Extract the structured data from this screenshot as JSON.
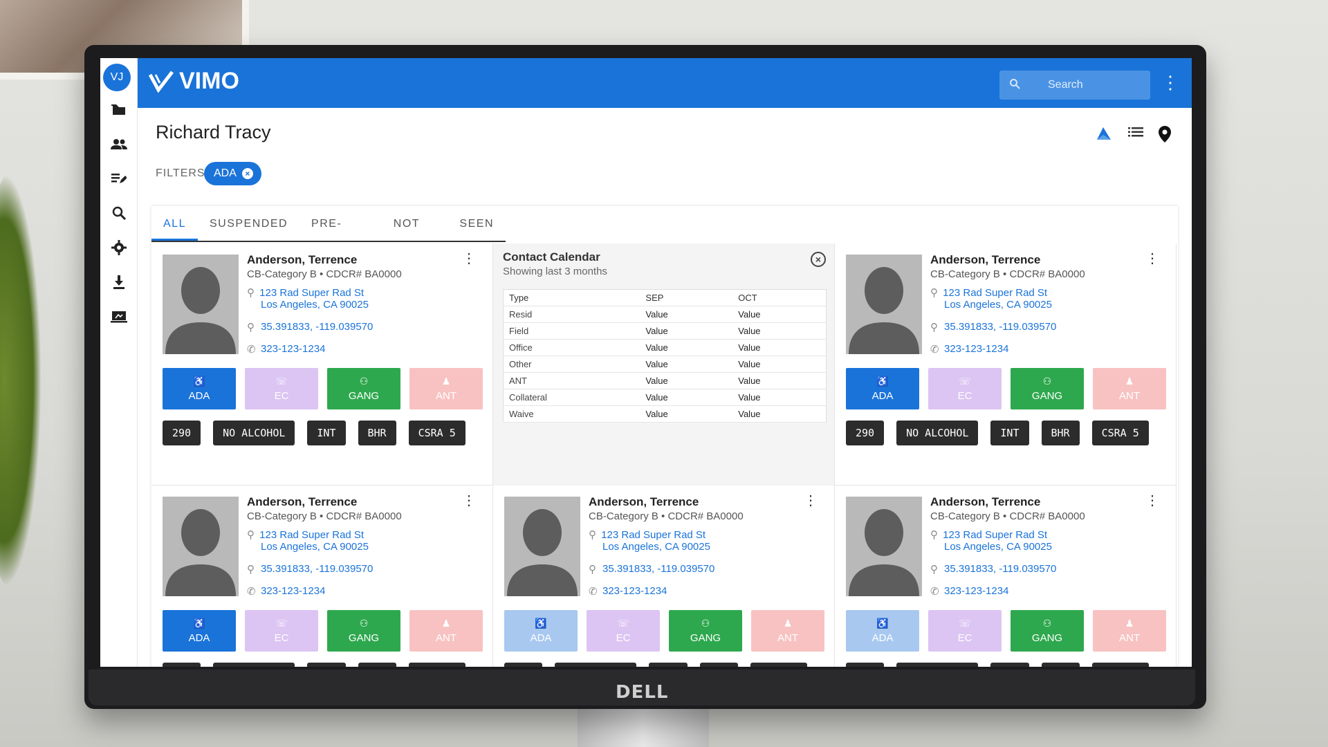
{
  "app": {
    "avatar_initials": "VJ",
    "logo_text": "VIMO",
    "search_placeholder": "Search",
    "brand_color": "#1a73d9"
  },
  "page": {
    "title": "Richard Tracy",
    "filters_label": "FILTERS",
    "active_filter": "ADA"
  },
  "tabs": [
    "ALL",
    "SUSPENDED",
    "PRE-RELEASE",
    "NOT SEEN",
    "SEEN"
  ],
  "calendar": {
    "title": "Contact Calendar",
    "subtitle": "Showing last 3 months",
    "columns": [
      "Type",
      "SEP",
      "OCT"
    ],
    "rows": [
      [
        "Resid",
        "Value",
        "Value"
      ],
      [
        "Field",
        "Value",
        "Value"
      ],
      [
        "Office",
        "Value",
        "Value"
      ],
      [
        "Other",
        "Value",
        "Value"
      ],
      [
        "ANT",
        "Value",
        "Value"
      ],
      [
        "Collateral",
        "Value",
        "Value"
      ],
      [
        "Waive",
        "Value",
        "Value"
      ]
    ]
  },
  "card": {
    "name": "Anderson, Terrence",
    "category": "CB-Category B • CDCR# BA0000",
    "address_line1": "123 Rad Super Rad St",
    "address_line2": "Los Angeles, CA 90025",
    "coords": "35.391833, -119.039570",
    "phone": "323-123-1234",
    "buttons": [
      "ADA",
      "EC",
      "GANG",
      "ANT"
    ],
    "tags": [
      "290",
      "NO ALCOHOL",
      "INT",
      "BHR",
      "CSRA 5"
    ]
  },
  "monitor_brand": "DELL"
}
